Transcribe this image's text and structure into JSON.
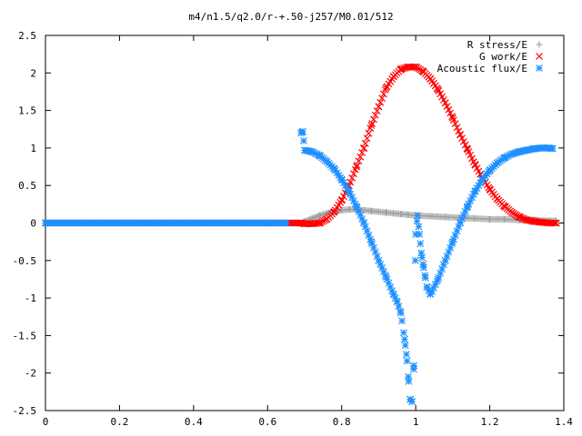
{
  "chart_data": {
    "type": "scatter",
    "title": "m4/n1.5/q2.0/r-+.50-j257/M0.01/512",
    "xlabel": "",
    "ylabel": "",
    "xlim": [
      0,
      1.4
    ],
    "ylim": [
      -2.5,
      2.5
    ],
    "xticks": [
      0,
      0.2,
      0.4,
      0.6,
      0.8,
      1,
      1.2,
      1.4
    ],
    "xtick_labels": [
      "0",
      "0.2",
      "0.4",
      "0.6",
      "0.8",
      "1",
      "1.2",
      "1.4"
    ],
    "yticks": [
      -2.5,
      -2,
      -1.5,
      -1,
      -0.5,
      0,
      0.5,
      1,
      1.5,
      2,
      2.5
    ],
    "ytick_labels": [
      "-2.5",
      "-2",
      "-1.5",
      "-1",
      "-0.5",
      "0",
      "0.5",
      "1",
      "1.5",
      "2",
      "2.5"
    ],
    "grid": false,
    "legend_position": "top-right",
    "series": [
      {
        "name": "R stress/E",
        "marker": "plus",
        "color": "#a0a0a0",
        "x": [
          0.0,
          0.1,
          0.2,
          0.3,
          0.4,
          0.5,
          0.6,
          0.69,
          0.7,
          0.72,
          0.74,
          0.76,
          0.78,
          0.8,
          0.82,
          0.84,
          0.86,
          0.88,
          0.9,
          0.92,
          0.94,
          0.96,
          0.98,
          1.0,
          1.04,
          1.08,
          1.12,
          1.16,
          1.2,
          1.24,
          1.28,
          1.32,
          1.36,
          1.38
        ],
        "y": [
          0.0,
          0.0,
          0.0,
          0.0,
          0.0,
          0.0,
          0.0,
          0.0,
          0.02,
          0.06,
          0.1,
          0.13,
          0.15,
          0.17,
          0.18,
          0.18,
          0.17,
          0.16,
          0.15,
          0.14,
          0.13,
          0.12,
          0.11,
          0.1,
          0.09,
          0.08,
          0.07,
          0.06,
          0.05,
          0.05,
          0.04,
          0.04,
          0.03,
          0.03
        ]
      },
      {
        "name": "G work/E",
        "marker": "cross",
        "color": "#ff0000",
        "x": [
          0.0,
          0.1,
          0.2,
          0.3,
          0.4,
          0.5,
          0.6,
          0.69,
          0.7,
          0.72,
          0.74,
          0.76,
          0.78,
          0.8,
          0.82,
          0.84,
          0.86,
          0.88,
          0.9,
          0.92,
          0.94,
          0.96,
          0.98,
          1.0,
          1.02,
          1.04,
          1.06,
          1.08,
          1.1,
          1.12,
          1.14,
          1.16,
          1.18,
          1.2,
          1.22,
          1.24,
          1.26,
          1.28,
          1.3,
          1.32,
          1.34,
          1.36,
          1.38
        ],
        "y": [
          0.0,
          0.0,
          0.0,
          0.0,
          0.0,
          0.0,
          0.0,
          0.0,
          -0.01,
          -0.01,
          0.0,
          0.05,
          0.15,
          0.3,
          0.5,
          0.75,
          1.0,
          1.3,
          1.55,
          1.8,
          1.95,
          2.05,
          2.08,
          2.08,
          2.02,
          1.92,
          1.78,
          1.6,
          1.4,
          1.18,
          0.98,
          0.78,
          0.6,
          0.45,
          0.32,
          0.22,
          0.14,
          0.08,
          0.04,
          0.02,
          0.01,
          0.0,
          0.0
        ]
      },
      {
        "name": "Acoustic flux/E",
        "marker": "star",
        "color": "#1e90ff",
        "x": [
          0.0,
          0.05,
          0.1,
          0.15,
          0.2,
          0.25,
          0.3,
          0.35,
          0.4,
          0.45,
          0.5,
          0.55,
          0.6,
          0.65,
          0.69,
          0.695,
          0.7,
          0.72,
          0.74,
          0.76,
          0.78,
          0.8,
          0.82,
          0.84,
          0.86,
          0.88,
          0.9,
          0.92,
          0.94,
          0.95,
          0.96,
          0.97,
          0.975,
          0.98,
          0.985,
          0.99,
          0.995,
          1.0,
          1.005,
          1.01,
          1.015,
          1.02,
          1.025,
          1.03,
          1.04,
          1.06,
          1.08,
          1.1,
          1.12,
          1.14,
          1.16,
          1.18,
          1.2,
          1.22,
          1.24,
          1.26,
          1.28,
          1.3,
          1.32,
          1.34,
          1.36,
          1.37
        ],
        "y": [
          0.0,
          0.0,
          0.0,
          0.0,
          0.0,
          0.0,
          0.0,
          0.0,
          0.0,
          0.0,
          0.0,
          0.0,
          0.0,
          0.0,
          1.2,
          1.22,
          0.97,
          0.95,
          0.9,
          0.82,
          0.72,
          0.58,
          0.42,
          0.22,
          0.0,
          -0.25,
          -0.5,
          -0.72,
          -0.95,
          -1.05,
          -1.2,
          -1.55,
          -1.75,
          -2.05,
          -2.35,
          -2.38,
          -1.9,
          -0.15,
          0.1,
          -0.15,
          -0.4,
          -0.55,
          -0.7,
          -0.85,
          -0.95,
          -0.75,
          -0.5,
          -0.25,
          0.0,
          0.22,
          0.42,
          0.58,
          0.7,
          0.8,
          0.87,
          0.92,
          0.95,
          0.97,
          0.99,
          1.0,
          1.0,
          0.99
        ]
      }
    ]
  }
}
